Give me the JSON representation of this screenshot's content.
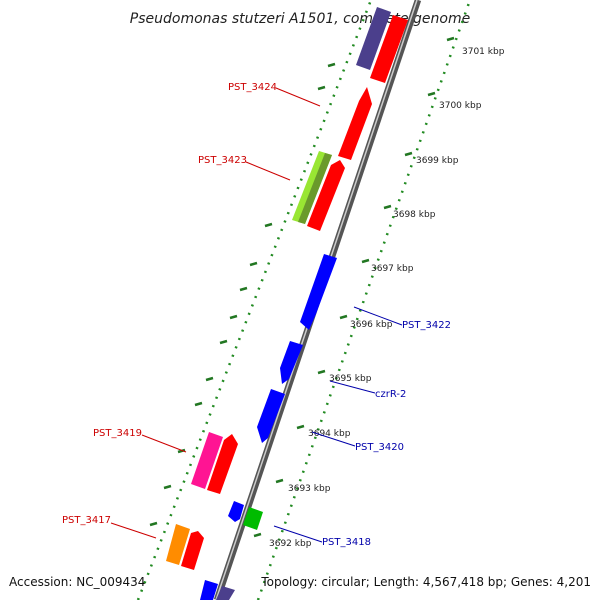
{
  "title": "Pseudomonas stutzeri A1501, complete genome",
  "footer": {
    "accession": "Accession: NC_009434",
    "topology": "Topology: circular; Length: 4,567,418 bp; Genes: 4,201"
  },
  "ticks": [
    "3701 kbp",
    "3700 kbp",
    "3699 kbp",
    "3698 kbp",
    "3697 kbp",
    "3696 kbp",
    "3695 kbp",
    "3694 kbp",
    "3693 kbp",
    "3692 kbp"
  ],
  "gene_labels": [
    {
      "text": "PST_3424",
      "strand": "reverse"
    },
    {
      "text": "PST_3423",
      "strand": "reverse"
    },
    {
      "text": "PST_3422",
      "strand": "forward"
    },
    {
      "text": "czrR-2",
      "strand": "forward"
    },
    {
      "text": "PST_3420",
      "strand": "forward"
    },
    {
      "text": "PST_3419",
      "strand": "reverse"
    },
    {
      "text": "PST_3417",
      "strand": "reverse"
    },
    {
      "text": "PST_3418",
      "strand": "forward"
    }
  ],
  "colors": {
    "reverse_label": "#cc0000",
    "forward_label": "#0000aa",
    "backbone": "#888888",
    "dots": "#228b22",
    "dashes": "#227722"
  }
}
